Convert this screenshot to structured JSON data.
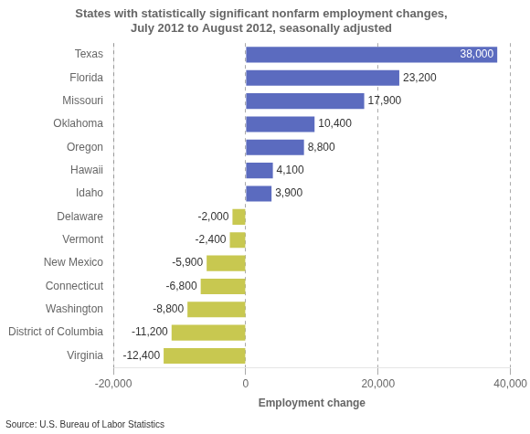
{
  "chart_data": {
    "type": "bar",
    "orientation": "horizontal",
    "title": "States with statistically significant nonfarm employment changes,\nJuly 2012 to August 2012, seasonally adjusted",
    "xlabel": "Employment change",
    "source": "Source: U.S. Bureau of Labor Statistics",
    "categories": [
      "Texas",
      "Florida",
      "Missouri",
      "Oklahoma",
      "Oregon",
      "Hawaii",
      "Idaho",
      "Delaware",
      "Vermont",
      "New Mexico",
      "Connecticut",
      "Washington",
      "District of Columbia",
      "Virginia"
    ],
    "values": [
      38000,
      23200,
      17900,
      10400,
      8800,
      4100,
      3900,
      -2000,
      -2400,
      -5900,
      -6800,
      -8800,
      -11200,
      -12400
    ],
    "value_labels": [
      "38,000",
      "23,200",
      "17,900",
      "10,400",
      "8,800",
      "4,100",
      "3,900",
      "-2,000",
      "-2,400",
      "-5,900",
      "-6,800",
      "-8,800",
      "-11,200",
      "-12,400"
    ],
    "colors": [
      "#5b6bbf",
      "#5b6bbf",
      "#5b6bbf",
      "#5b6bbf",
      "#5b6bbf",
      "#5b6bbf",
      "#5b6bbf",
      "#c8c850",
      "#c8c850",
      "#c8c850",
      "#c8c850",
      "#c8c850",
      "#c8c850",
      "#c8c850"
    ],
    "xlim": [
      -20000,
      40000
    ],
    "xticks": [
      {
        "value": -20000,
        "label": "-20,000"
      },
      0,
      {
        "value": 20000,
        "label": "20,000"
      },
      {
        "value": 40000,
        "label": "40,000"
      }
    ],
    "grid": true,
    "data_labels": true
  }
}
